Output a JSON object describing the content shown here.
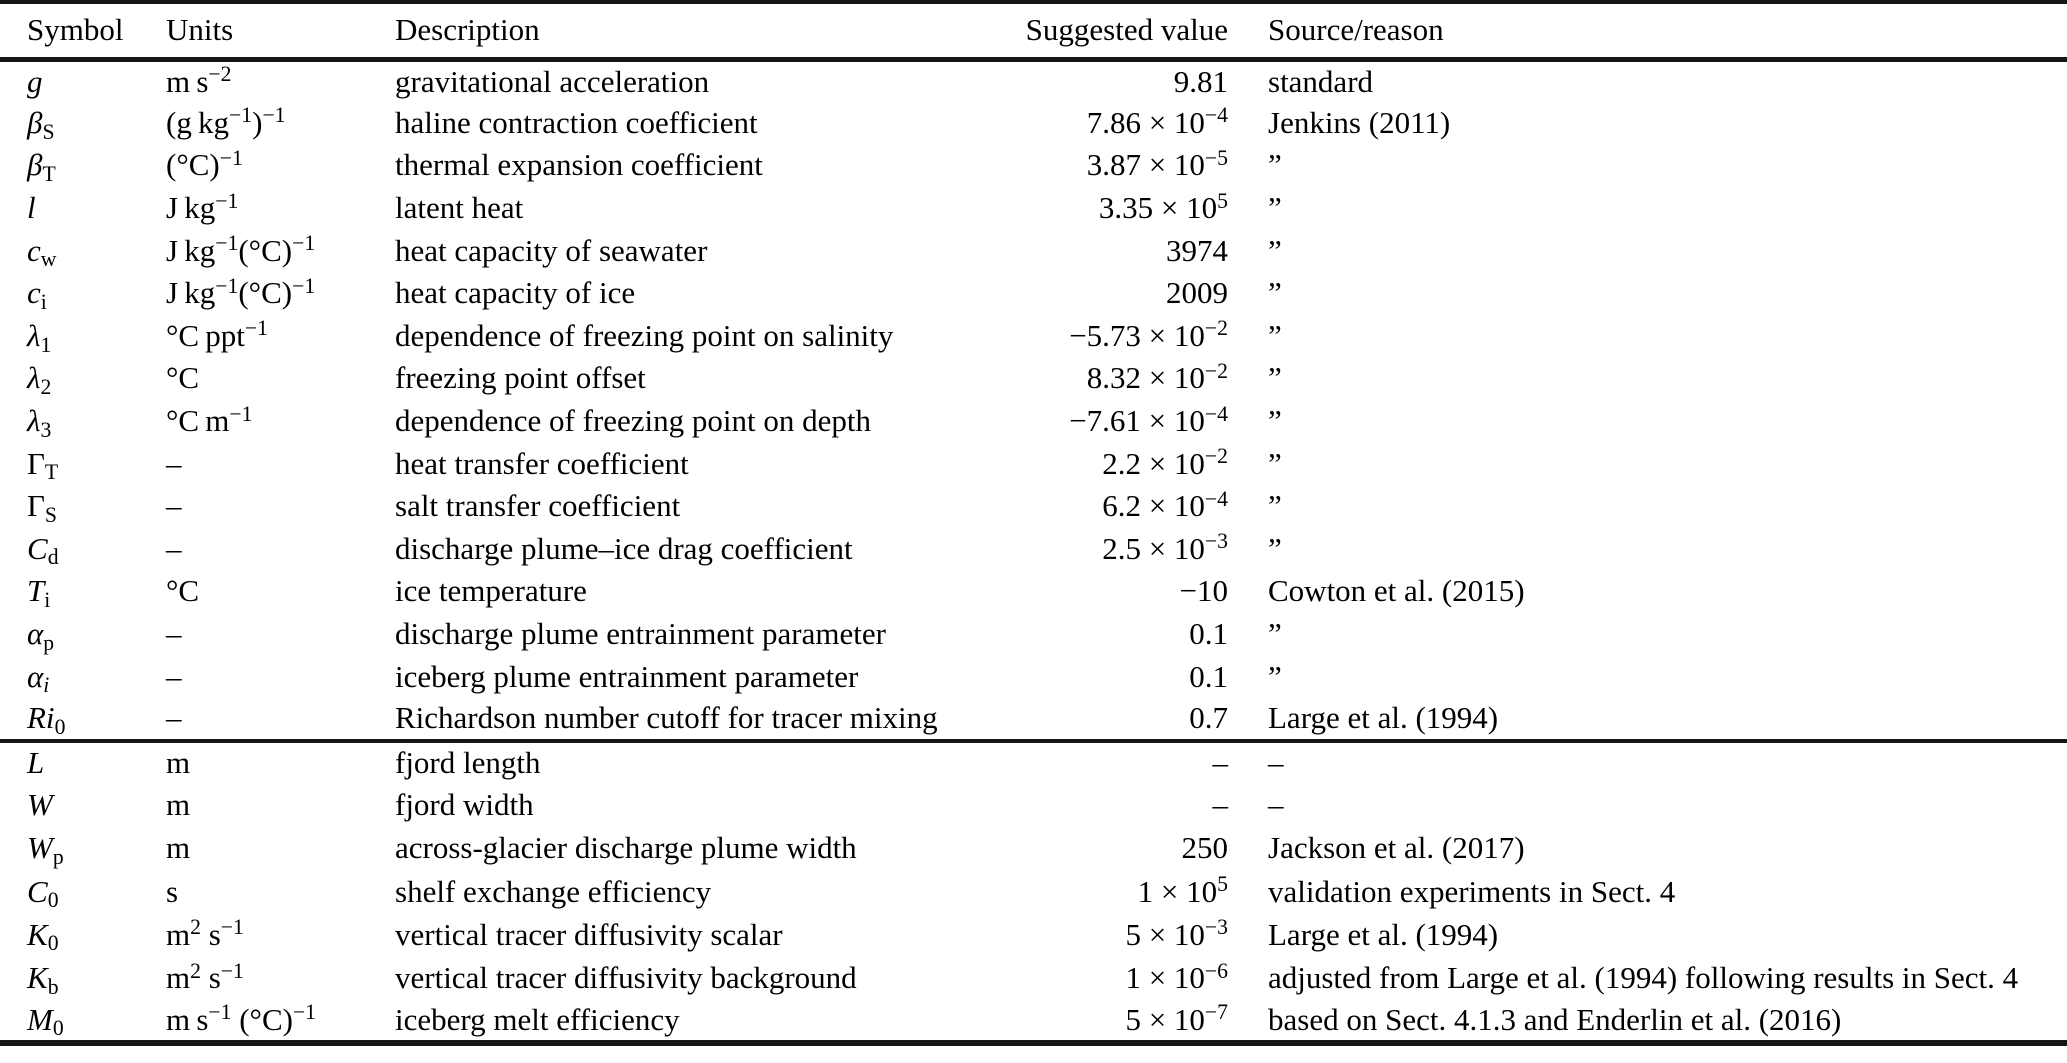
{
  "page": {
    "background": "#ffffff",
    "text_color": "#000000",
    "rule_color": "#161616"
  },
  "table": {
    "columns": [
      "Symbol",
      "Units",
      "Description",
      "Suggested value",
      "Source/reason"
    ],
    "sections": [
      {
        "name": "physical-constants",
        "rows": [
          {
            "symbol": "<i>g</i>",
            "units": "m s<sup>−2</sup>",
            "description": "gravitational acceleration",
            "value": "9.81",
            "source": "standard"
          },
          {
            "symbol": "<i>β</i><sub>S</sub>",
            "units": "(g kg<sup>−1</sup>)<sup>−1</sup>",
            "description": "haline contraction coefficient",
            "value": "7.86 × 10<sup>−4</sup>",
            "source": "Jenkins (2011)"
          },
          {
            "symbol": "<i>β</i><sub>T</sub>",
            "units": "(°C)<sup>−1</sup>",
            "description": "thermal expansion coefficient",
            "value": "3.87 × 10<sup>−5</sup>",
            "source": "”"
          },
          {
            "symbol": "<i>l</i>",
            "units": "J kg<sup>−1</sup>",
            "description": "latent heat",
            "value": "3.35 × 10<sup>5</sup>",
            "source": "”"
          },
          {
            "symbol": "<i>c</i><sub>w</sub>",
            "units": "J kg<sup>−1</sup>(°C)<sup>−1</sup>",
            "description": "heat capacity of seawater",
            "value": "3974",
            "source": "”"
          },
          {
            "symbol": "<i>c</i><sub>i</sub>",
            "units": "J kg<sup>−1</sup>(°C)<sup>−1</sup>",
            "description": "heat capacity of ice",
            "value": "2009",
            "source": "”"
          },
          {
            "symbol": "<i>λ</i><sub>1</sub>",
            "units": "°C ppt<sup>−1</sup>",
            "description": "dependence of freezing point on salinity",
            "value": "−5.73 × 10<sup>−2</sup>",
            "source": "”"
          },
          {
            "symbol": "<i>λ</i><sub>2</sub>",
            "units": "°C",
            "description": "freezing point offset",
            "value": "8.32 × 10<sup>−2</sup>",
            "source": "”"
          },
          {
            "symbol": "<i>λ</i><sub>3</sub>",
            "units": "°C m<sup>−1</sup>",
            "description": "dependence of freezing point on depth",
            "value": "−7.61 × 10<sup>−4</sup>",
            "source": "”"
          },
          {
            "symbol": "Γ<sub>T</sub>",
            "units": "–",
            "description": "heat transfer coefficient",
            "value": "2.2 × 10<sup>−2</sup>",
            "source": "”"
          },
          {
            "symbol": "Γ<sub>S</sub>",
            "units": "–",
            "description": "salt transfer coefficient",
            "value": "6.2 × 10<sup>−4</sup>",
            "source": "”"
          },
          {
            "symbol": "<i>C</i><sub>d</sub>",
            "units": "–",
            "description": "discharge plume–ice drag coefficient",
            "value": "2.5 × 10<sup>−3</sup>",
            "source": "”"
          },
          {
            "symbol": "<i>T</i><sub>i</sub>",
            "units": "°C",
            "description": "ice temperature",
            "value": "−10",
            "source": "Cowton et al. (2015)"
          },
          {
            "symbol": "<i>α</i><sub>p</sub>",
            "units": "–",
            "description": "discharge plume entrainment parameter",
            "value": "0.1",
            "source": "”"
          },
          {
            "symbol": "<i>α</i><sub><i>i</i></sub>",
            "units": "–",
            "description": "iceberg plume entrainment parameter",
            "value": "0.1",
            "source": "”"
          },
          {
            "symbol": "<i>Ri</i><sub>0</sub>",
            "units": "–",
            "description": "Richardson number cutoff for tracer mixing",
            "value": "0.7",
            "source": "Large et al. (1994)"
          }
        ]
      },
      {
        "name": "model-parameters",
        "rows": [
          {
            "symbol": "<i>L</i>",
            "units": "m",
            "description": "fjord length",
            "value": "–",
            "source": "–"
          },
          {
            "symbol": "<i>W</i>",
            "units": "m",
            "description": "fjord width",
            "value": "–",
            "source": "–"
          },
          {
            "symbol": "<i>W</i><sub>p</sub>",
            "units": "m",
            "description": "across-glacier discharge plume width",
            "value": "250",
            "source": "Jackson et al. (2017)"
          },
          {
            "symbol": "<i>C</i><sub>0</sub>",
            "units": "s",
            "description": "shelf exchange efficiency",
            "value": "1 × 10<sup>5</sup>",
            "source": "validation experiments in Sect. 4"
          },
          {
            "symbol": "<i>K</i><sub>0</sub>",
            "units": "m<sup>2</sup> s<sup>−1</sup>",
            "description": "vertical tracer diffusivity scalar",
            "value": "5 × 10<sup>−3</sup>",
            "source": "Large et al. (1994)"
          },
          {
            "symbol": "<i>K</i><sub>b</sub>",
            "units": "m<sup>2</sup> s<sup>−1</sup>",
            "description": "vertical tracer diffusivity background",
            "value": "1 × 10<sup>−6</sup>",
            "source": "adjusted from Large et al. (1994) following results in Sect. 4"
          },
          {
            "symbol": "<i>M</i><sub>0</sub>",
            "units": "m s<sup>−1</sup> (°C)<sup>−1</sup>",
            "description": "iceberg melt efficiency",
            "value": "5 × 10<sup>−7</sup>",
            "source": "based on Sect. 4.1.3 and Enderlin et al. (2016)"
          }
        ]
      }
    ]
  }
}
